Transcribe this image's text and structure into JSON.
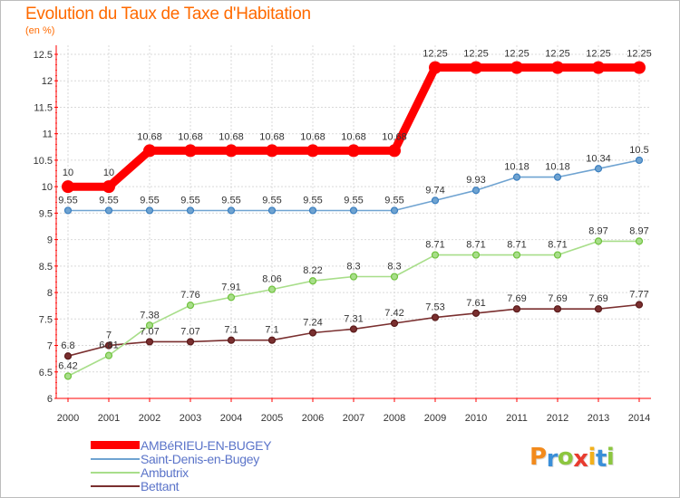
{
  "title": "Evolution du Taux de Taxe d'Habitation",
  "subtitle": "(en %)",
  "brand": {
    "text": "Proxiti",
    "letters": [
      {
        "ch": "P",
        "color": "#f28a1c"
      },
      {
        "ch": "r",
        "color": "#3a8fd9"
      },
      {
        "ch": "o",
        "color": "#8cc63f"
      },
      {
        "ch": "x",
        "color": "#e83c2f"
      },
      {
        "ch": "i",
        "color": "#f2b01c"
      },
      {
        "ch": "t",
        "color": "#3a8fd9"
      },
      {
        "ch": "i",
        "color": "#8cc63f"
      }
    ]
  },
  "chart_data": {
    "type": "line",
    "x": [
      2000,
      2001,
      2002,
      2003,
      2004,
      2005,
      2006,
      2007,
      2008,
      2009,
      2010,
      2011,
      2012,
      2013,
      2014
    ],
    "ylim": [
      6,
      12.5
    ],
    "yticks": [
      6,
      6.5,
      7,
      7.5,
      8,
      8.5,
      9,
      9.5,
      10,
      10.5,
      11,
      11.5,
      12,
      12.5
    ],
    "grid": true,
    "legend_position": "bottom-left",
    "series": [
      {
        "name": "AMBéRIEU-EN-BUGEY",
        "color": "#ff0000",
        "values": [
          10,
          10,
          10.68,
          10.68,
          10.68,
          10.68,
          10.68,
          10.68,
          10.68,
          12.25,
          12.25,
          12.25,
          12.25,
          12.25,
          12.25
        ]
      },
      {
        "name": "Saint-Denis-en-Bugey",
        "color": "#6fa3d1",
        "marker": "#3b7fc0",
        "values": [
          9.55,
          9.55,
          9.55,
          9.55,
          9.55,
          9.55,
          9.55,
          9.55,
          9.55,
          9.74,
          9.93,
          10.18,
          10.18,
          10.34,
          10.5
        ]
      },
      {
        "name": "Ambutrix",
        "color": "#a8de8a",
        "marker": "#6fc23d",
        "values": [
          6.42,
          6.81,
          7.38,
          7.76,
          7.91,
          8.06,
          8.22,
          8.3,
          8.3,
          8.71,
          8.71,
          8.71,
          8.71,
          8.97,
          8.97
        ]
      },
      {
        "name": "Bettant",
        "color": "#7a2f2f",
        "marker": "#5a1a1a",
        "values": [
          6.8,
          7,
          7.07,
          7.07,
          7.1,
          7.1,
          7.24,
          7.31,
          7.42,
          7.53,
          7.61,
          7.69,
          7.69,
          7.69,
          7.77
        ]
      }
    ]
  }
}
